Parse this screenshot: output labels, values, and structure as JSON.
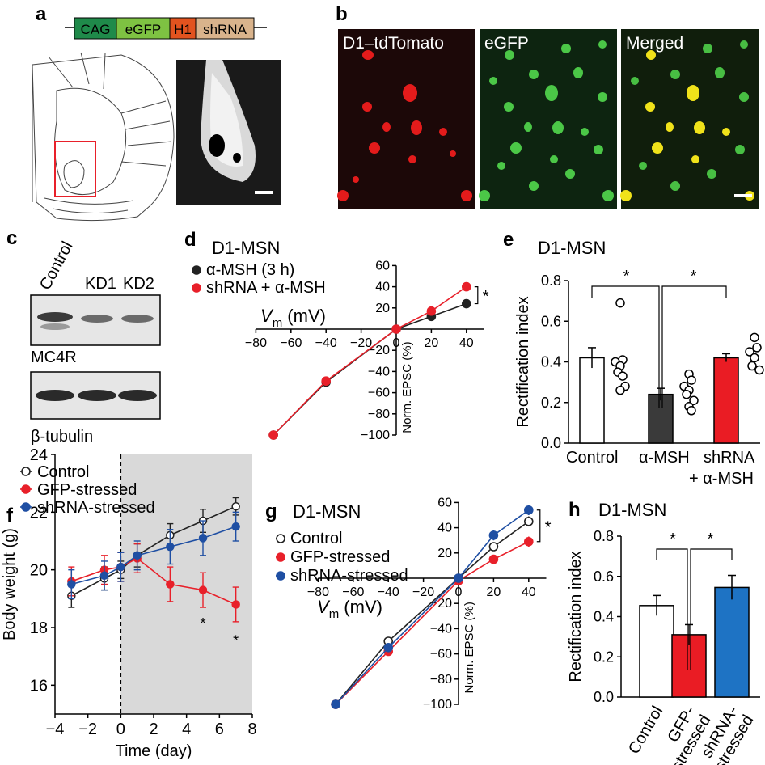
{
  "colors": {
    "black": "#222222",
    "red": "#e8202a",
    "blue": "#1f4fa3",
    "bar_gray": "#3a3a3a",
    "bar_red": "#ea1c24",
    "bar_blue": "#1e73c4",
    "shade": "#d9d9d9",
    "cag": "#1f8a4a",
    "egfp": "#7ec242",
    "h1": "#e2531f",
    "shrna": "#d9b38c"
  },
  "panel_a": {
    "letter": "a",
    "construct": [
      "CAG",
      "eGFP",
      "H1",
      "shRNA"
    ]
  },
  "panel_b": {
    "letter": "b",
    "images": [
      "D1–tdTomato",
      "eGFP",
      "Merged"
    ]
  },
  "panel_c": {
    "letter": "c",
    "lanes": [
      "Control",
      "KD1",
      "KD2"
    ],
    "blots": [
      "MC4R",
      "β-tubulin"
    ]
  },
  "chart_data": [
    {
      "id": "d",
      "letter": "d",
      "type": "line",
      "title": "D1-MSN",
      "xlabel": "V",
      "xlabel_sub": "m",
      "xlabel_unit": "(mV)",
      "ylabel": "Norm. EPSC (%)",
      "xlim": [
        -80,
        50
      ],
      "ylim": [
        -100,
        60
      ],
      "x_ticks": [
        -80,
        -60,
        -40,
        -20,
        0,
        20,
        40
      ],
      "y_ticks": [
        -100,
        -80,
        -60,
        -40,
        -20,
        20,
        40,
        60
      ],
      "significance": "*",
      "series": [
        {
          "name": "α-MSH (3 h)",
          "color": "#222222",
          "fill": "#222222",
          "x": [
            -70,
            -40,
            0,
            20,
            40
          ],
          "y": [
            -100,
            -50,
            0,
            12,
            24
          ],
          "err": [
            0,
            3,
            0,
            2,
            3
          ]
        },
        {
          "name": "shRNA + α-MSH",
          "color": "#e8202a",
          "fill": "#e8202a",
          "x": [
            -70,
            -40,
            0,
            20,
            40
          ],
          "y": [
            -100,
            -49,
            0,
            17,
            40
          ],
          "err": [
            0,
            3,
            0,
            2,
            4
          ]
        }
      ]
    },
    {
      "id": "e",
      "letter": "e",
      "type": "bar",
      "title": "D1-MSN",
      "ylabel": "Rectification index",
      "ylim": [
        0,
        0.8
      ],
      "y_ticks": [
        0.0,
        0.2,
        0.4,
        0.6,
        0.8
      ],
      "categories": [
        "Control",
        "α-MSH",
        "shRNA",
        "+ α-MSH"
      ],
      "bars": [
        {
          "label": "Control",
          "value": 0.42,
          "err": 0.05,
          "color": "#ffffff",
          "points": [
            0.69,
            0.41,
            0.4,
            0.38,
            0.35,
            0.28,
            0.26,
            0.33
          ]
        },
        {
          "label": "α-MSH",
          "value": 0.24,
          "err": 0.03,
          "color": "#3a3a3a",
          "points": [
            0.34,
            0.31,
            0.28,
            0.26,
            0.24,
            0.21,
            0.18,
            0.16
          ]
        },
        {
          "label": "shRNA + α-MSH",
          "value": 0.42,
          "err": 0.02,
          "color": "#ea1c24",
          "points": [
            0.52,
            0.47,
            0.45,
            0.42,
            0.38,
            0.36
          ]
        }
      ],
      "significance": [
        "*",
        "*"
      ]
    },
    {
      "id": "f",
      "letter": "f",
      "type": "line",
      "xlabel": "Time (day)",
      "ylabel": "Body weight (g)",
      "xlim": [
        -4,
        8
      ],
      "ylim": [
        15,
        24
      ],
      "x_ticks": [
        -4,
        -2,
        0,
        2,
        4,
        6,
        8
      ],
      "y_ticks": [
        16,
        18,
        20,
        22,
        24
      ],
      "shade_from": 0,
      "series": [
        {
          "name": "Control",
          "color": "#222222",
          "fill": "#ffffff",
          "x": [
            -3,
            -1,
            0,
            1,
            3,
            5,
            7
          ],
          "y": [
            19.1,
            19.7,
            20.0,
            20.5,
            21.2,
            21.7,
            22.2
          ],
          "err": [
            0.4,
            0.4,
            0.3,
            0.4,
            0.4,
            0.4,
            0.3
          ]
        },
        {
          "name": "GFP-stressed",
          "color": "#e8202a",
          "fill": "#e8202a",
          "x": [
            -3,
            -1,
            0,
            1,
            3,
            5,
            7
          ],
          "y": [
            19.6,
            20.0,
            20.1,
            20.4,
            19.5,
            19.3,
            18.8
          ],
          "err": [
            0.5,
            0.5,
            0.5,
            0.5,
            0.6,
            0.6,
            0.6
          ]
        },
        {
          "name": "shRNA-stressed",
          "color": "#1f4fa3",
          "fill": "#1f4fa3",
          "x": [
            -3,
            -1,
            0,
            1,
            3,
            5,
            7
          ],
          "y": [
            19.5,
            19.8,
            20.1,
            20.5,
            20.8,
            21.1,
            21.5
          ],
          "err": [
            0.5,
            0.5,
            0.5,
            0.5,
            0.6,
            0.6,
            0.5
          ]
        }
      ],
      "significance": [
        {
          "x": 5,
          "y": 18.2,
          "text": "*"
        },
        {
          "x": 7,
          "y": 17.6,
          "text": "*"
        }
      ]
    },
    {
      "id": "g",
      "letter": "g",
      "type": "line",
      "title": "D1-MSN",
      "xlabel": "V",
      "xlabel_sub": "m",
      "xlabel_unit": "(mV)",
      "ylabel": "Norm. EPSC (%)",
      "xlim": [
        -80,
        50
      ],
      "ylim": [
        -100,
        60
      ],
      "x_ticks": [
        -80,
        -60,
        -40,
        -20,
        0,
        20,
        40
      ],
      "y_ticks": [
        -100,
        -80,
        -60,
        -40,
        -20,
        20,
        40,
        60
      ],
      "significance": "*",
      "series": [
        {
          "name": "Control",
          "color": "#222222",
          "fill": "#ffffff",
          "x": [
            -70,
            -40,
            0,
            20,
            40
          ],
          "y": [
            -100,
            -50,
            0,
            25,
            45
          ],
          "err": [
            0,
            3,
            0,
            3,
            4
          ]
        },
        {
          "name": "GFP-stressed",
          "color": "#e8202a",
          "fill": "#e8202a",
          "x": [
            -70,
            -40,
            0,
            20,
            40
          ],
          "y": [
            -100,
            -58,
            -2,
            15,
            29
          ],
          "err": [
            0,
            3,
            0,
            3,
            4
          ]
        },
        {
          "name": "shRNA-stressed",
          "color": "#1f4fa3",
          "fill": "#1f4fa3",
          "x": [
            -70,
            -40,
            0,
            20,
            40
          ],
          "y": [
            -100,
            -55,
            0,
            34,
            54
          ],
          "err": [
            0,
            3,
            0,
            4,
            4
          ]
        }
      ]
    },
    {
      "id": "h",
      "letter": "h",
      "type": "bar",
      "title": "D1-MSN",
      "ylabel": "Rectification index",
      "ylim": [
        0,
        0.8
      ],
      "y_ticks": [
        0.0,
        0.2,
        0.4,
        0.6,
        0.8
      ],
      "categories": [
        "Control",
        "GFP-stressed",
        "shRNA-stressed"
      ],
      "category_lines": [
        [
          "Control"
        ],
        [
          "GFP-",
          "stressed"
        ],
        [
          "shRNA-",
          "stressed"
        ]
      ],
      "bars": [
        {
          "label": "Control",
          "value": 0.455,
          "err": 0.05,
          "color": "#ffffff"
        },
        {
          "label": "GFP-stressed",
          "value": 0.31,
          "err": 0.05,
          "color": "#ea1c24"
        },
        {
          "label": "shRNA-stressed",
          "value": 0.545,
          "err": 0.06,
          "color": "#1e73c4"
        }
      ],
      "significance": [
        "*",
        "*"
      ]
    }
  ]
}
